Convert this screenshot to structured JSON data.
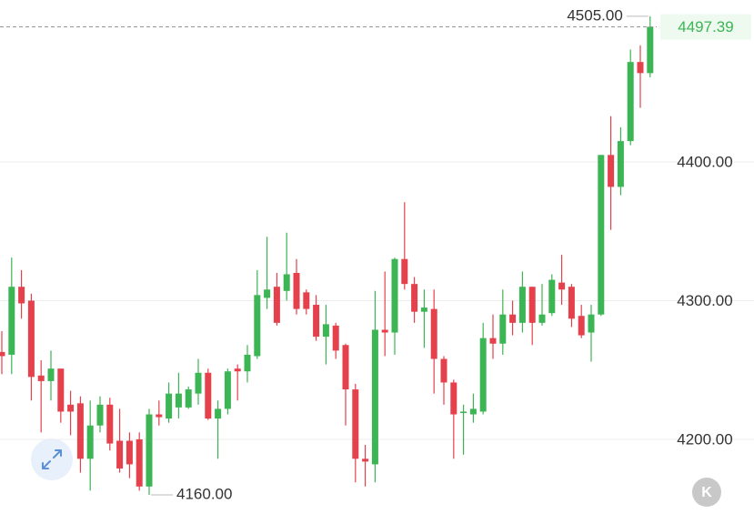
{
  "chart_data": {
    "type": "candlestick",
    "ylim": [
      4146.2,
      4516.7
    ],
    "yticks": [
      {
        "value": 4200,
        "label": "4200.00"
      },
      {
        "value": 4300,
        "label": "4300.00"
      },
      {
        "value": 4400,
        "label": "4400.00"
      }
    ],
    "grid": true,
    "up_color": "#3cb554",
    "down_color": "#e5414d",
    "open": [
      4263,
      4261,
      4310,
      4300,
      4246,
      4242,
      4251,
      4225,
      4226,
      4186,
      4210,
      4225,
      4199,
      4199,
      4200,
      4166,
      4218,
      4215,
      4223,
      4223,
      4233,
      4248,
      4215,
      4222,
      4251,
      4249,
      4260,
      4302,
      4310,
      4307,
      4320,
      4306,
      4297,
      4274,
      4282,
      4268,
      4236,
      4186,
      4182,
      4279,
      4277,
      4330,
      4312,
      4292,
      4294,
      4258,
      4241,
      4219,
      4218,
      4220,
      4273,
      4269,
      4290,
      4284,
      4310,
      4284,
      4291,
      4313,
      4310,
      4289,
      4277,
      4290,
      4405,
      4382,
      4415,
      4472,
      4464
    ],
    "high": [
      4278,
      4331,
      4322,
      4305,
      4257,
      4264,
      4251,
      4235,
      4231,
      4228,
      4231,
      4230,
      4222,
      4205,
      4205,
      4222,
      4228,
      4241,
      4248,
      4238,
      4258,
      4251,
      4228,
      4251,
      4254,
      4268,
      4322,
      4346,
      4320,
      4349,
      4330,
      4308,
      4304,
      4297,
      4284,
      4269,
      4240,
      4196,
      4307,
      4321,
      4331,
      4371,
      4317,
      4308,
      4308,
      4260,
      4243,
      4225,
      4233,
      4284,
      4290,
      4308,
      4300,
      4321,
      4310,
      4312,
      4319,
      4333,
      4312,
      4297,
      4297,
      4405,
      4433,
      4425,
      4481,
      4484,
      4505
    ],
    "low": [
      4247,
      4247,
      4287,
      4228,
      4205,
      4228,
      4212,
      4203,
      4176,
      4163,
      4205,
      4192,
      4176,
      4172,
      4163,
      4160,
      4210,
      4212,
      4215,
      4222,
      4225,
      4214,
      4186,
      4218,
      4228,
      4241,
      4258,
      4294,
      4282,
      4300,
      4290,
      4290,
      4271,
      4254,
      4258,
      4210,
      4169,
      4166,
      4169,
      4260,
      4261,
      4308,
      4284,
      4266,
      4233,
      4225,
      4186,
      4189,
      4212,
      4218,
      4258,
      4261,
      4275,
      4277,
      4268,
      4282,
      4289,
      4297,
      4281,
      4273,
      4256,
      4289,
      4351,
      4376,
      4412,
      4439,
      4461
    ],
    "close": [
      4260,
      4310,
      4298,
      4245,
      4242,
      4251,
      4220,
      4220,
      4186,
      4210,
      4225,
      4197,
      4179,
      4182,
      4166,
      4218,
      4216,
      4233,
      4233,
      4236,
      4248,
      4215,
      4222,
      4249,
      4249,
      4261,
      4304,
      4308,
      4284,
      4319,
      4294,
      4294,
      4274,
      4283,
      4264,
      4236,
      4186,
      4184,
      4279,
      4277,
      4330,
      4312,
      4292,
      4295,
      4258,
      4241,
      4218,
      4220,
      4222,
      4273,
      4269,
      4290,
      4284,
      4310,
      4284,
      4290,
      4315,
      4308,
      4287,
      4275,
      4290,
      4405,
      4382,
      4415,
      4472,
      4464,
      4497.39
    ],
    "high_label": {
      "value": 4505,
      "label": "4505.00"
    },
    "low_label": {
      "value": 4160,
      "label": "4160.00"
    },
    "last_price": 4497.39,
    "k_button": "K"
  }
}
